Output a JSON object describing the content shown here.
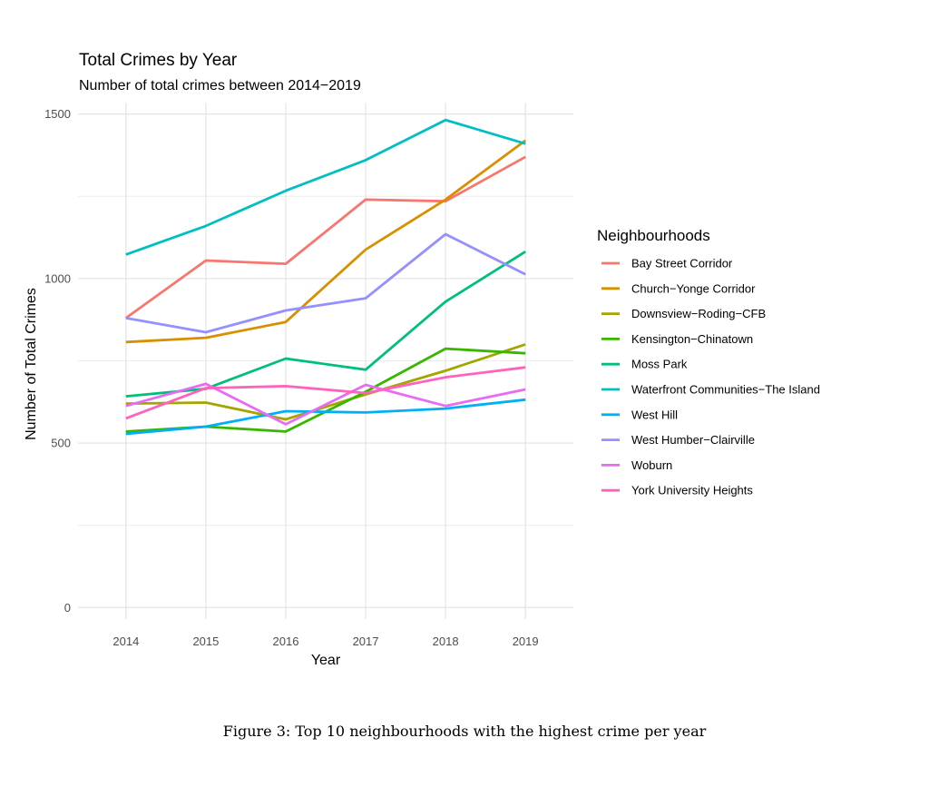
{
  "chart_data": {
    "type": "line",
    "title": "Total Crimes by Year",
    "subtitle": "Number of total crimes between 2014−2019",
    "xlabel": "Year",
    "ylabel": "Number of Total Crimes",
    "x": [
      2014,
      2015,
      2016,
      2017,
      2018,
      2019
    ],
    "xlim": [
      2013.4,
      2019.6
    ],
    "ylim": [
      -35,
      1535
    ],
    "yticks": [
      0,
      500,
      1000,
      1500
    ],
    "grid": true,
    "legend_title": "Neighbourhoods",
    "legend_position": "right",
    "series": [
      {
        "name": "Bay Street Corridor",
        "color": "#F8766D",
        "values": [
          880,
          1055,
          1045,
          1240,
          1235,
          1370
        ]
      },
      {
        "name": "Church−Yonge Corridor",
        "color": "#D89000",
        "values": [
          807,
          820,
          868,
          1088,
          1240,
          1420
        ]
      },
      {
        "name": "Downsview−Roding−CFB",
        "color": "#A3A500",
        "values": [
          620,
          623,
          572,
          648,
          720,
          800
        ]
      },
      {
        "name": "Kensington−Chinatown",
        "color": "#39B600",
        "values": [
          535,
          550,
          535,
          656,
          787,
          773
        ]
      },
      {
        "name": "Moss Park",
        "color": "#00BF7D",
        "values": [
          642,
          665,
          757,
          723,
          930,
          1082
        ]
      },
      {
        "name": "Waterfront Communities−The Island",
        "color": "#00BFC4",
        "values": [
          1073,
          1160,
          1267,
          1360,
          1482,
          1410
        ]
      },
      {
        "name": "West Hill",
        "color": "#00B0F6",
        "values": [
          528,
          550,
          597,
          593,
          605,
          632
        ]
      },
      {
        "name": "West Humber−Clairville",
        "color": "#9590FF",
        "values": [
          880,
          837,
          903,
          940,
          1135,
          1013
        ]
      },
      {
        "name": "Woburn",
        "color": "#E76BF3",
        "values": [
          613,
          680,
          557,
          677,
          613,
          663
        ]
      },
      {
        "name": "York University Heights",
        "color": "#FF62BC",
        "values": [
          575,
          667,
          673,
          652,
          700,
          730
        ]
      }
    ]
  },
  "caption": "Figure 3: Top 10 neighbourhoods with the highest crime per year"
}
